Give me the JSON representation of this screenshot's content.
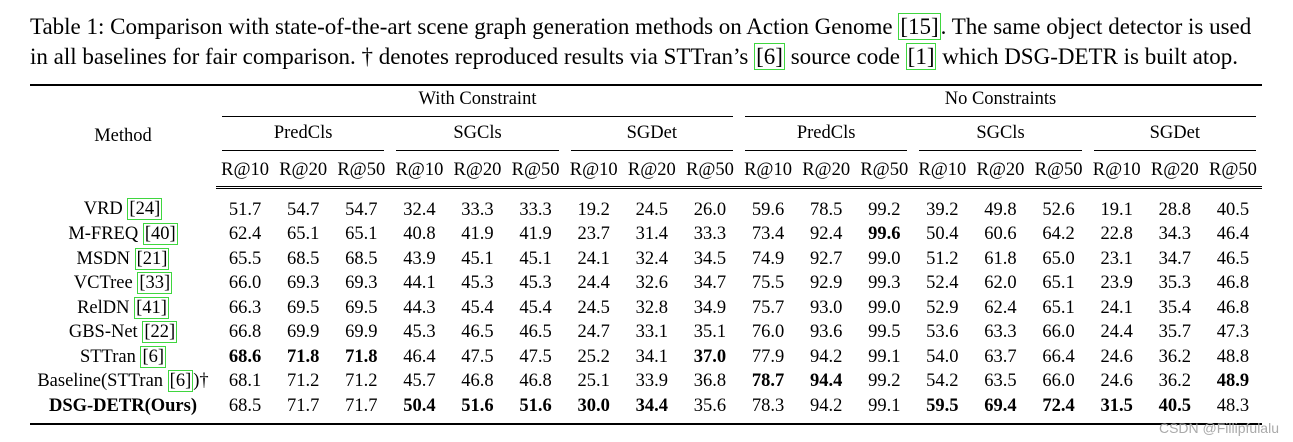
{
  "caption": [
    "Table 1: Comparison with state-of-the-art scene graph generation methods on Action Genome ",
    "[15]",
    ". The same object detector is used",
    "in all baselines for fair comparison. † denotes reproduced results via STTran’s ",
    "[6]",
    " source code ",
    "[1]",
    " which DSG-DETR is built atop."
  ],
  "table": {
    "method_header": "Method",
    "settings": [
      "With Constraint",
      "No Constraints"
    ],
    "groups": [
      "PredCls",
      "SGCls",
      "SGDet",
      "PredCls",
      "SGCls",
      "SGDet"
    ],
    "metrics": [
      "R@10",
      "R@20",
      "R@50",
      "R@10",
      "R@20",
      "R@50",
      "R@10",
      "R@20",
      "R@50",
      "R@10",
      "R@20",
      "R@50",
      "R@10",
      "R@20",
      "R@50",
      "R@10",
      "R@20",
      "R@50"
    ],
    "rows": [
      {
        "method": [
          "VRD ",
          "[24]"
        ],
        "values": [
          "51.7",
          "54.7",
          "54.7",
          "32.4",
          "33.3",
          "33.3",
          "19.2",
          "24.5",
          "26.0",
          "59.6",
          "78.5",
          "99.2",
          "39.2",
          "49.8",
          "52.6",
          "19.1",
          "28.8",
          "40.5"
        ],
        "bold": []
      },
      {
        "method": [
          "M-FREQ ",
          "[40]"
        ],
        "values": [
          "62.4",
          "65.1",
          "65.1",
          "40.8",
          "41.9",
          "41.9",
          "23.7",
          "31.4",
          "33.3",
          "73.4",
          "92.4",
          "99.6",
          "50.4",
          "60.6",
          "64.2",
          "22.8",
          "34.3",
          "46.4"
        ],
        "bold": [
          11
        ]
      },
      {
        "method": [
          "MSDN ",
          "[21]"
        ],
        "values": [
          "65.5",
          "68.5",
          "68.5",
          "43.9",
          "45.1",
          "45.1",
          "24.1",
          "32.4",
          "34.5",
          "74.9",
          "92.7",
          "99.0",
          "51.2",
          "61.8",
          "65.0",
          "23.1",
          "34.7",
          "46.5"
        ],
        "bold": []
      },
      {
        "method": [
          "VCTree ",
          "[33]"
        ],
        "values": [
          "66.0",
          "69.3",
          "69.3",
          "44.1",
          "45.3",
          "45.3",
          "24.4",
          "32.6",
          "34.7",
          "75.5",
          "92.9",
          "99.3",
          "52.4",
          "62.0",
          "65.1",
          "23.9",
          "35.3",
          "46.8"
        ],
        "bold": []
      },
      {
        "method": [
          "RelDN ",
          "[41]"
        ],
        "values": [
          "66.3",
          "69.5",
          "69.5",
          "44.3",
          "45.4",
          "45.4",
          "24.5",
          "32.8",
          "34.9",
          "75.7",
          "93.0",
          "99.0",
          "52.9",
          "62.4",
          "65.1",
          "24.1",
          "35.4",
          "46.8"
        ],
        "bold": []
      },
      {
        "method": [
          "GBS-Net ",
          "[22]"
        ],
        "values": [
          "66.8",
          "69.9",
          "69.9",
          "45.3",
          "46.5",
          "46.5",
          "24.7",
          "33.1",
          "35.1",
          "76.0",
          "93.6",
          "99.5",
          "53.6",
          "63.3",
          "66.0",
          "24.4",
          "35.7",
          "47.3"
        ],
        "bold": []
      },
      {
        "method": [
          "STTran ",
          "[6]"
        ],
        "values": [
          "68.6",
          "71.8",
          "71.8",
          "46.4",
          "47.5",
          "47.5",
          "25.2",
          "34.1",
          "37.0",
          "77.9",
          "94.2",
          "99.1",
          "54.0",
          "63.7",
          "66.4",
          "24.6",
          "36.2",
          "48.8"
        ],
        "bold": [
          0,
          1,
          2,
          8
        ]
      },
      {
        "method": [
          "Baseline(STTran ",
          "[6]",
          ")†"
        ],
        "values": [
          "68.1",
          "71.2",
          "71.2",
          "45.7",
          "46.8",
          "46.8",
          "25.1",
          "33.9",
          "36.8",
          "78.7",
          "94.4",
          "99.2",
          "54.2",
          "63.5",
          "66.0",
          "24.6",
          "36.2",
          "48.9"
        ],
        "bold": [
          9,
          10,
          17
        ]
      },
      {
        "method": [
          "DSG-DETR(Ours)"
        ],
        "method_bold": true,
        "values": [
          "68.5",
          "71.7",
          "71.7",
          "50.4",
          "51.6",
          "51.6",
          "30.0",
          "34.4",
          "35.6",
          "78.3",
          "94.2",
          "99.1",
          "59.5",
          "69.4",
          "72.4",
          "31.5",
          "40.5",
          "48.3"
        ],
        "bold": [
          3,
          4,
          5,
          6,
          7,
          12,
          13,
          14,
          15,
          16
        ]
      }
    ]
  },
  "watermark": "CSDN @Fillipfulalu"
}
